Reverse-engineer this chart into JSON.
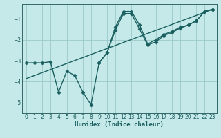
{
  "xlabel": "Humidex (Indice chaleur)",
  "bg_color": "#c5e8e8",
  "grid_color": "#9cc8c8",
  "line_color": "#1a5f5f",
  "spine_color": "#336666",
  "xlim": [
    -0.5,
    23.5
  ],
  "ylim": [
    -5.5,
    -0.3
  ],
  "yticks": [
    -5,
    -4,
    -3,
    -2,
    -1
  ],
  "xticks": [
    0,
    1,
    2,
    3,
    4,
    5,
    6,
    7,
    8,
    9,
    10,
    11,
    12,
    13,
    14,
    15,
    16,
    17,
    18,
    19,
    20,
    21,
    22,
    23
  ],
  "series1_x": [
    0,
    1,
    2,
    3,
    4,
    5,
    6,
    7,
    8,
    9,
    10,
    11,
    12,
    13,
    14,
    15,
    16,
    17,
    18,
    19,
    20,
    21,
    22,
    23
  ],
  "series1_y": [
    -3.1,
    -3.1,
    -3.1,
    -3.05,
    -4.5,
    -3.5,
    -3.7,
    -4.5,
    -5.1,
    -3.1,
    -2.6,
    -1.4,
    -0.65,
    -0.65,
    -1.3,
    -2.2,
    -2.0,
    -1.75,
    -1.6,
    -1.4,
    -1.3,
    -1.1,
    -0.65,
    -0.55
  ],
  "series2_x": [
    0,
    23
  ],
  "series2_y": [
    -3.85,
    -0.55
  ],
  "series3_x": [
    9,
    10,
    11,
    12,
    13,
    14,
    15,
    16,
    17,
    18,
    19,
    20,
    21,
    22,
    23
  ],
  "series3_y": [
    -3.1,
    -2.6,
    -1.55,
    -0.75,
    -0.75,
    -1.5,
    -2.25,
    -2.1,
    -1.8,
    -1.65,
    -1.45,
    -1.3,
    -1.1,
    -0.65,
    -0.55
  ],
  "tick_fontsize": 5.5,
  "xlabel_fontsize": 6.5,
  "marker_size": 2.5,
  "line_width": 1.0
}
